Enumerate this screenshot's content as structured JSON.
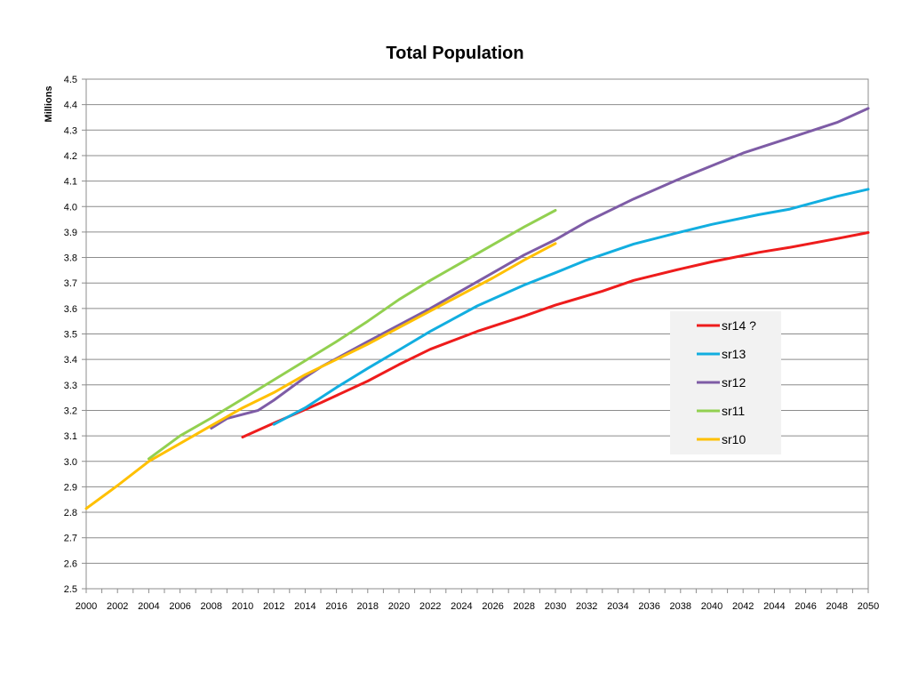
{
  "chart_data": {
    "type": "line",
    "title": "Total Population",
    "ylabel": "Millions",
    "xlabel": "",
    "xlim": [
      2000,
      2050
    ],
    "ylim": [
      2.5,
      4.5
    ],
    "ytick_step": 0.1,
    "xtick_step": 2,
    "grid": "horizontal",
    "legend_position": "right",
    "series": [
      {
        "name": "sr14 ?",
        "color": "#ee1c1c",
        "points": [
          [
            2010,
            3.095
          ],
          [
            2012,
            3.15
          ],
          [
            2015,
            3.23
          ],
          [
            2018,
            3.315
          ],
          [
            2020,
            3.38
          ],
          [
            2022,
            3.44
          ],
          [
            2025,
            3.51
          ],
          [
            2028,
            3.57
          ],
          [
            2030,
            3.613
          ],
          [
            2033,
            3.668
          ],
          [
            2035,
            3.71
          ],
          [
            2038,
            3.755
          ],
          [
            2040,
            3.783
          ],
          [
            2043,
            3.82
          ],
          [
            2045,
            3.84
          ],
          [
            2048,
            3.874
          ],
          [
            2050,
            3.898
          ]
        ]
      },
      {
        "name": "sr13",
        "color": "#12aee0",
        "points": [
          [
            2012,
            3.145
          ],
          [
            2014,
            3.21
          ],
          [
            2016,
            3.29
          ],
          [
            2018,
            3.365
          ],
          [
            2020,
            3.437
          ],
          [
            2022,
            3.51
          ],
          [
            2025,
            3.61
          ],
          [
            2028,
            3.692
          ],
          [
            2030,
            3.74
          ],
          [
            2032,
            3.79
          ],
          [
            2035,
            3.853
          ],
          [
            2038,
            3.9
          ],
          [
            2040,
            3.93
          ],
          [
            2043,
            3.968
          ],
          [
            2045,
            3.99
          ],
          [
            2048,
            4.04
          ],
          [
            2050,
            4.068
          ]
        ]
      },
      {
        "name": "sr12",
        "color": "#7e5ca6",
        "points": [
          [
            2008,
            3.13
          ],
          [
            2009,
            3.168
          ],
          [
            2011,
            3.2
          ],
          [
            2012,
            3.24
          ],
          [
            2014,
            3.33
          ],
          [
            2015,
            3.37
          ],
          [
            2018,
            3.47
          ],
          [
            2020,
            3.535
          ],
          [
            2022,
            3.6
          ],
          [
            2025,
            3.705
          ],
          [
            2028,
            3.81
          ],
          [
            2030,
            3.87
          ],
          [
            2032,
            3.94
          ],
          [
            2035,
            4.03
          ],
          [
            2038,
            4.11
          ],
          [
            2040,
            4.16
          ],
          [
            2042,
            4.21
          ],
          [
            2045,
            4.27
          ],
          [
            2048,
            4.33
          ],
          [
            2050,
            4.385
          ]
        ]
      },
      {
        "name": "sr11",
        "color": "#92d050",
        "points": [
          [
            2004,
            3.01
          ],
          [
            2006,
            3.1
          ],
          [
            2008,
            3.17
          ],
          [
            2010,
            3.245
          ],
          [
            2012,
            3.32
          ],
          [
            2014,
            3.395
          ],
          [
            2016,
            3.47
          ],
          [
            2018,
            3.55
          ],
          [
            2020,
            3.635
          ],
          [
            2022,
            3.71
          ],
          [
            2024,
            3.78
          ],
          [
            2026,
            3.85
          ],
          [
            2028,
            3.92
          ],
          [
            2030,
            3.985
          ]
        ]
      },
      {
        "name": "sr10",
        "color": "#ffc000",
        "points": [
          [
            2000,
            2.815
          ],
          [
            2002,
            2.905
          ],
          [
            2004,
            3.0
          ],
          [
            2006,
            3.07
          ],
          [
            2008,
            3.14
          ],
          [
            2010,
            3.21
          ],
          [
            2012,
            3.27
          ],
          [
            2014,
            3.34
          ],
          [
            2016,
            3.4
          ],
          [
            2018,
            3.46
          ],
          [
            2020,
            3.525
          ],
          [
            2022,
            3.59
          ],
          [
            2024,
            3.655
          ],
          [
            2026,
            3.72
          ],
          [
            2028,
            3.79
          ],
          [
            2030,
            3.855
          ]
        ]
      }
    ]
  }
}
